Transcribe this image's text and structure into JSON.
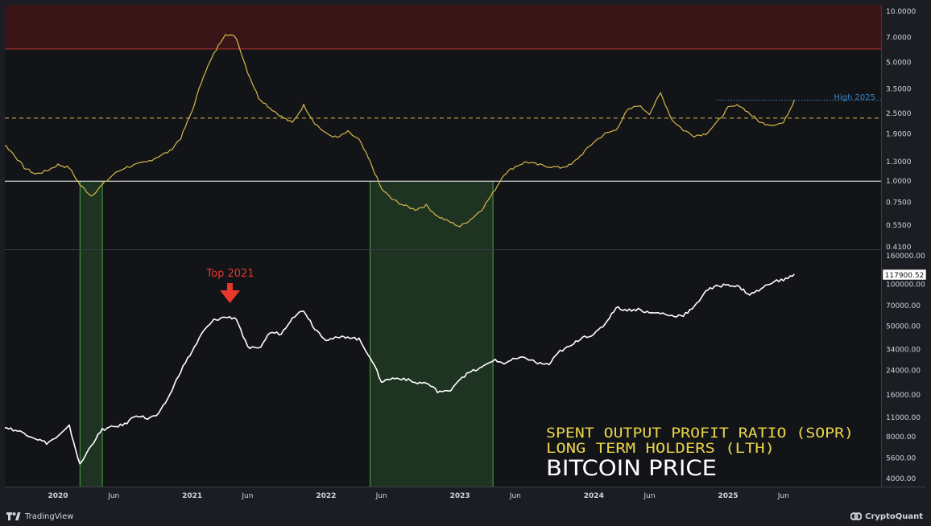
{
  "chart_data": [
    {
      "type": "line",
      "pane": "top",
      "title": "",
      "scale": "log",
      "ylim": [
        0.38,
        11.0
      ],
      "y_ticks": [
        "10.0000",
        "7.0000",
        "5.0000",
        "3.5000",
        "2.5000",
        "1.9000",
        "1.3000",
        "1.0000",
        "0.7500",
        "0.5500",
        "0.4100"
      ],
      "y_tick_values": [
        10,
        7,
        5,
        3.5,
        2.5,
        1.9,
        1.3,
        1.0,
        0.75,
        0.55,
        0.41
      ],
      "series": [
        {
          "color": "#d4b94a",
          "x": [
            "2019-05",
            "2019-06",
            "2019-07",
            "2019-08",
            "2019-09",
            "2019-10",
            "2019-11",
            "2019-12",
            "2020-01",
            "2020-02",
            "2020-03",
            "2020-04",
            "2020-05",
            "2020-06",
            "2020-07",
            "2020-08",
            "2020-09",
            "2020-10",
            "2020-11",
            "2020-12",
            "2021-01",
            "2021-02",
            "2021-03",
            "2021-04",
            "2021-05",
            "2021-06",
            "2021-07",
            "2021-08",
            "2021-09",
            "2021-10",
            "2021-11",
            "2021-12",
            "2022-01",
            "2022-02",
            "2022-03",
            "2022-04",
            "2022-05",
            "2022-06",
            "2022-07",
            "2022-08",
            "2022-09",
            "2022-10",
            "2022-11",
            "2022-12",
            "2023-01",
            "2023-02",
            "2023-03",
            "2023-04",
            "2023-05",
            "2023-06",
            "2023-07",
            "2023-08",
            "2023-09",
            "2023-10",
            "2023-11",
            "2023-12",
            "2024-01",
            "2024-02",
            "2024-03",
            "2024-04",
            "2024-05",
            "2024-06",
            "2024-07",
            "2024-08",
            "2024-09",
            "2024-10",
            "2024-11",
            "2024-12",
            "2025-01",
            "2025-02",
            "2025-03",
            "2025-04",
            "2025-05",
            "2025-06",
            "2025-07"
          ],
          "values": [
            2.4,
            2.1,
            2.0,
            1.7,
            1.45,
            1.2,
            1.1,
            1.15,
            1.25,
            1.2,
            0.95,
            0.82,
            0.95,
            1.1,
            1.2,
            1.25,
            1.3,
            1.4,
            1.5,
            1.8,
            2.6,
            4.2,
            5.6,
            7.4,
            7.0,
            4.4,
            3.1,
            2.7,
            2.4,
            2.2,
            2.8,
            2.2,
            1.9,
            1.8,
            1.95,
            1.75,
            1.3,
            0.9,
            0.78,
            0.72,
            0.68,
            0.72,
            0.62,
            0.58,
            0.54,
            0.6,
            0.68,
            0.85,
            1.1,
            1.22,
            1.3,
            1.25,
            1.22,
            1.2,
            1.25,
            1.45,
            1.7,
            1.9,
            2.0,
            2.6,
            2.8,
            2.5,
            3.3,
            2.3,
            2.0,
            1.85,
            1.9,
            2.2,
            2.7,
            2.8,
            2.5,
            2.2,
            2.15,
            2.2,
            3.0
          ]
        }
      ],
      "reference_lines": [
        {
          "value": 1.0,
          "style": "solid",
          "color": "#ffffff"
        },
        {
          "value": 2.35,
          "style": "dashed",
          "color": "#d4b94a"
        },
        {
          "value": 3.0,
          "style": "dotted",
          "color": "#3b82c4",
          "from": "2024-12",
          "label": "High 2025"
        }
      ],
      "bands": [
        {
          "from": 6.0,
          "to": 11.0,
          "color": "#3a1518"
        }
      ]
    },
    {
      "type": "line",
      "pane": "bottom",
      "title": "",
      "scale": "log",
      "ylim": [
        3700,
        165000
      ],
      "y_ticks": [
        "160000.00",
        "100000.00",
        "70000.00",
        "50000.00",
        "34000.00",
        "24000.00",
        "16000.00",
        "11000.00",
        "8000.00",
        "5600.00",
        "4000.00"
      ],
      "y_tick_values": [
        160000,
        100000,
        70000,
        50000,
        34000,
        24000,
        16000,
        11000,
        8000,
        5600,
        4000
      ],
      "last_price_label": "117900.52",
      "annotation": "Top 2021",
      "series": [
        {
          "color": "#ffffff",
          "x": [
            "2019-05",
            "2019-06",
            "2019-07",
            "2019-08",
            "2019-09",
            "2019-10",
            "2019-11",
            "2019-12",
            "2020-01",
            "2020-02",
            "2020-03",
            "2020-04",
            "2020-05",
            "2020-06",
            "2020-07",
            "2020-08",
            "2020-09",
            "2020-10",
            "2020-11",
            "2020-12",
            "2021-01",
            "2021-02",
            "2021-03",
            "2021-04",
            "2021-05",
            "2021-06",
            "2021-07",
            "2021-08",
            "2021-09",
            "2021-10",
            "2021-11",
            "2021-12",
            "2022-01",
            "2022-02",
            "2022-03",
            "2022-04",
            "2022-05",
            "2022-06",
            "2022-07",
            "2022-08",
            "2022-09",
            "2022-10",
            "2022-11",
            "2022-12",
            "2023-01",
            "2023-02",
            "2023-03",
            "2023-04",
            "2023-05",
            "2023-06",
            "2023-07",
            "2023-08",
            "2023-09",
            "2023-10",
            "2023-11",
            "2023-12",
            "2024-01",
            "2024-02",
            "2024-03",
            "2024-04",
            "2024-05",
            "2024-06",
            "2024-07",
            "2024-08",
            "2024-09",
            "2024-10",
            "2024-11",
            "2024-12",
            "2025-01",
            "2025-02",
            "2025-03",
            "2025-04",
            "2025-05",
            "2025-06",
            "2025-07"
          ],
          "values": [
            9000,
            10500,
            10000,
            9500,
            9000,
            8500,
            7800,
            7200,
            8000,
            9500,
            5000,
            7000,
            9000,
            9400,
            9800,
            11500,
            10800,
            11500,
            16000,
            24000,
            33000,
            46000,
            55000,
            58000,
            57000,
            35000,
            34000,
            45000,
            44000,
            58000,
            65000,
            48000,
            40000,
            41000,
            42000,
            40000,
            30000,
            20000,
            21000,
            21000,
            19500,
            19500,
            17000,
            16800,
            21000,
            23500,
            25000,
            28500,
            27000,
            29000,
            29500,
            27000,
            26500,
            33000,
            36000,
            42000,
            43000,
            52000,
            68000,
            65000,
            66000,
            62000,
            62000,
            59000,
            60000,
            68000,
            90000,
            96000,
            100000,
            95000,
            84000,
            92000,
            104000,
            107000,
            117900
          ]
        }
      ]
    }
  ],
  "x_ticks": [
    {
      "label": "2020",
      "date": "2020-01",
      "year": true
    },
    {
      "label": "Jun",
      "date": "2020-06",
      "year": false
    },
    {
      "label": "2021",
      "date": "2021-01",
      "year": true
    },
    {
      "label": "Jun",
      "date": "2021-06",
      "year": false
    },
    {
      "label": "2022",
      "date": "2022-01",
      "year": true
    },
    {
      "label": "Jun",
      "date": "2022-06",
      "year": false
    },
    {
      "label": "2023",
      "date": "2023-01",
      "year": true
    },
    {
      "label": "Jun",
      "date": "2023-06",
      "year": false
    },
    {
      "label": "2024",
      "date": "2024-01",
      "year": true
    },
    {
      "label": "Jun",
      "date": "2024-06",
      "year": false
    },
    {
      "label": "2025",
      "date": "2025-01",
      "year": true
    },
    {
      "label": "Jun",
      "date": "2025-06",
      "year": false
    }
  ],
  "highlight_periods": [
    {
      "from": "2020-03",
      "to": "2020-05",
      "color": "#4ea34a"
    },
    {
      "from": "2022-05",
      "to": "2023-04",
      "color": "#4ea34a"
    }
  ],
  "labels": {
    "top_annotation": "Top 2021",
    "high_2025": "High 2025",
    "legend_line1": "SPENT OUTPUT PROFIT RATIO (SOPR)",
    "legend_line2": "LONG TERM HOLDERS (LTH)",
    "legend_line3": "BITCOIN PRICE",
    "last_price": "117900.52"
  },
  "colors": {
    "background": "#131418",
    "frame": "#1b1d22",
    "sopr_line": "#d4b94a",
    "price_line": "#ffffff",
    "red_zone": "#3a1518",
    "red_zone_border": "#b5302b",
    "green_band": "#4ea34a",
    "annotation_red": "#e8382c",
    "legend_yellow": "#e8d44a",
    "high_label": "#3b82c4"
  },
  "branding": {
    "left": "TradingView",
    "right": "CryptoQuant"
  }
}
